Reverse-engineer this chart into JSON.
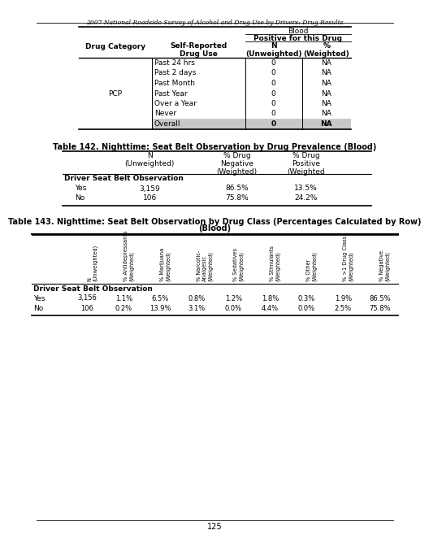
{
  "page_title": "2007 National Roadside Survey of Alcohol and Drug Use by Drivers: Drug Results",
  "page_number": "125",
  "table1": {
    "rows": [
      [
        "",
        "Past 24 hrs",
        "0",
        "NA"
      ],
      [
        "",
        "Past 2 days",
        "0",
        "NA"
      ],
      [
        "",
        "Past Month",
        "0",
        "NA"
      ],
      [
        "PCP",
        "Past Year",
        "0",
        "NA"
      ],
      [
        "",
        "Over a Year",
        "0",
        "NA"
      ],
      [
        "",
        "Never",
        "0",
        "NA"
      ],
      [
        "",
        "Overall",
        "0",
        "NA"
      ]
    ]
  },
  "table2": {
    "title": "Table 142. Nighttime: Seat Belt Observation by Drug Prevalence (Blood)",
    "rows": [
      [
        "Yes",
        "3,159",
        "86.5%",
        "13.5%"
      ],
      [
        "No",
        "106",
        "75.8%",
        "24.2%"
      ]
    ]
  },
  "table3": {
    "title1": "Table 143. Nighttime: Seat Belt Observation by Drug Class (Percentages Calculated by Row)",
    "title2": "(Blood)",
    "col_headers": [
      "N\n(Unweighted)",
      "% Antidepressants\n(Weighted)",
      "% Marijuana\n(Weighted)",
      "% Narcotic-\nAnalgesic\n(Weighted)",
      "% Sedatives\n(Weighted)",
      "% Stimulants\n(Weighted)",
      "% Other\n(Weighted)",
      "% >1 Drug Class\n(Weighted)",
      "% Negative\n(Weighted)"
    ],
    "rows": [
      [
        "Yes",
        "3,156",
        "1.1%",
        "6.5%",
        "0.8%",
        "1.2%",
        "1.8%",
        "0.3%",
        "1.9%",
        "86.5%"
      ],
      [
        "No",
        "106",
        "0.2%",
        "13.9%",
        "3.1%",
        "0.0%",
        "4.4%",
        "0.0%",
        "2.5%",
        "75.8%"
      ]
    ]
  }
}
